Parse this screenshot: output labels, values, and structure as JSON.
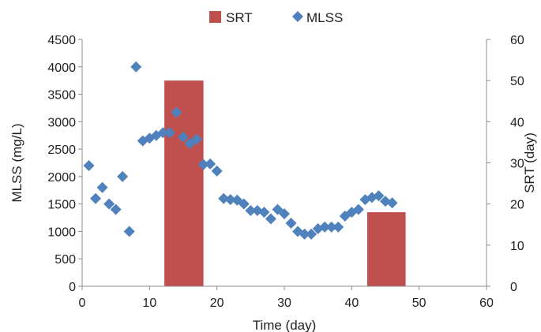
{
  "chart_data": {
    "type": "bar+scatter",
    "xlabel": "Time (day)",
    "ylabel_left": "MLSS (mg/L)",
    "ylabel_right": "SRT (day)",
    "xlim": [
      0,
      60
    ],
    "ylim_left": [
      0,
      4500
    ],
    "ylim_right": [
      0,
      60
    ],
    "x_ticks": [
      "0",
      "10",
      "20",
      "30",
      "40",
      "50",
      "60"
    ],
    "y_left_ticks": [
      "0",
      "500",
      "1000",
      "1500",
      "2000",
      "2500",
      "3000",
      "3500",
      "4000",
      "4500"
    ],
    "y_right_ticks": [
      "0",
      "10",
      "20",
      "30",
      "40",
      "50",
      "60"
    ],
    "grid": false,
    "legend_position": "top",
    "series": [
      {
        "name": "SRT",
        "kind": "bar",
        "axis": "right",
        "color": "#c0504d",
        "bars": [
          {
            "x_start": 12.2,
            "x_end": 18,
            "value": 50
          },
          {
            "x_start": 42.3,
            "x_end": 48,
            "value": 18
          }
        ]
      },
      {
        "name": "MLSS",
        "kind": "scatter",
        "axis": "left",
        "marker": "diamond",
        "color": "#4f81bd",
        "points": [
          [
            1,
            2200
          ],
          [
            2,
            1600
          ],
          [
            3,
            1800
          ],
          [
            4,
            1500
          ],
          [
            5,
            1400
          ],
          [
            6,
            2000
          ],
          [
            7,
            1000
          ],
          [
            8,
            4000
          ],
          [
            9,
            2650
          ],
          [
            10,
            2700
          ],
          [
            11,
            2750
          ],
          [
            12,
            2800
          ],
          [
            13,
            2800
          ],
          [
            14,
            3170
          ],
          [
            15,
            2720
          ],
          [
            16,
            2600
          ],
          [
            17,
            2680
          ],
          [
            18,
            2220
          ],
          [
            19,
            2230
          ],
          [
            20,
            2100
          ],
          [
            21,
            1600
          ],
          [
            22,
            1580
          ],
          [
            23,
            1570
          ],
          [
            24,
            1500
          ],
          [
            25,
            1380
          ],
          [
            26,
            1380
          ],
          [
            27,
            1350
          ],
          [
            28,
            1230
          ],
          [
            29,
            1400
          ],
          [
            30,
            1320
          ],
          [
            31,
            1150
          ],
          [
            32,
            1000
          ],
          [
            33,
            950
          ],
          [
            34,
            950
          ],
          [
            35,
            1050
          ],
          [
            36,
            1080
          ],
          [
            37,
            1080
          ],
          [
            38,
            1080
          ],
          [
            39,
            1280
          ],
          [
            40,
            1350
          ],
          [
            41,
            1400
          ],
          [
            42,
            1580
          ],
          [
            43,
            1620
          ],
          [
            44,
            1650
          ],
          [
            45,
            1550
          ],
          [
            46,
            1520
          ]
        ]
      }
    ]
  }
}
